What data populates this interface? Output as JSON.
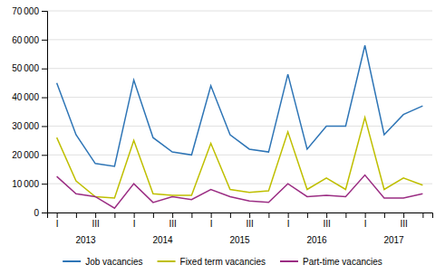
{
  "chart_data": {
    "type": "line",
    "categories": [
      "I",
      null,
      "III",
      null,
      "I",
      null,
      "III",
      null,
      "I",
      null,
      "III",
      null,
      "I",
      null,
      "III",
      null,
      "I",
      null,
      "III",
      null
    ],
    "series": [
      {
        "name": "Job vacancies",
        "color": "#2E75B6",
        "values": [
          45000,
          27000,
          17000,
          16000,
          46000,
          26000,
          21000,
          20000,
          44000,
          27000,
          22000,
          21000,
          48000,
          22000,
          30000,
          30000,
          58000,
          27000,
          34000,
          37000
        ]
      },
      {
        "name": "Fixed term vacancies",
        "color": "#BFBF00",
        "values": [
          26000,
          11000,
          5500,
          5000,
          25000,
          6500,
          6000,
          6000,
          24000,
          8000,
          7000,
          7500,
          28000,
          8000,
          12000,
          8000,
          33000,
          8000,
          12000,
          9500
        ]
      },
      {
        "name": "Part-time vacancies",
        "color": "#9B2D83",
        "values": [
          12500,
          6500,
          5500,
          1500,
          10000,
          3500,
          5500,
          4500,
          8000,
          5500,
          4000,
          3500,
          10000,
          5500,
          6000,
          5500,
          13000,
          5000,
          5000,
          6500
        ]
      }
    ],
    "annotations": [
      "2013",
      "2014",
      "2015",
      "2016",
      "2017"
    ],
    "ylim": [
      0,
      70000
    ],
    "yticks": [
      0,
      {
        "value": 10000,
        "label": "10 000"
      },
      {
        "value": 20000,
        "label": "20 000"
      },
      {
        "value": 30000,
        "label": "30 000"
      },
      {
        "value": 40000,
        "label": "40 000"
      },
      {
        "value": 50000,
        "label": "50 000"
      },
      {
        "value": 60000,
        "label": "60 000"
      },
      {
        "value": 70000,
        "label": "70 000"
      }
    ],
    "grid": true,
    "legend": "bottom"
  }
}
